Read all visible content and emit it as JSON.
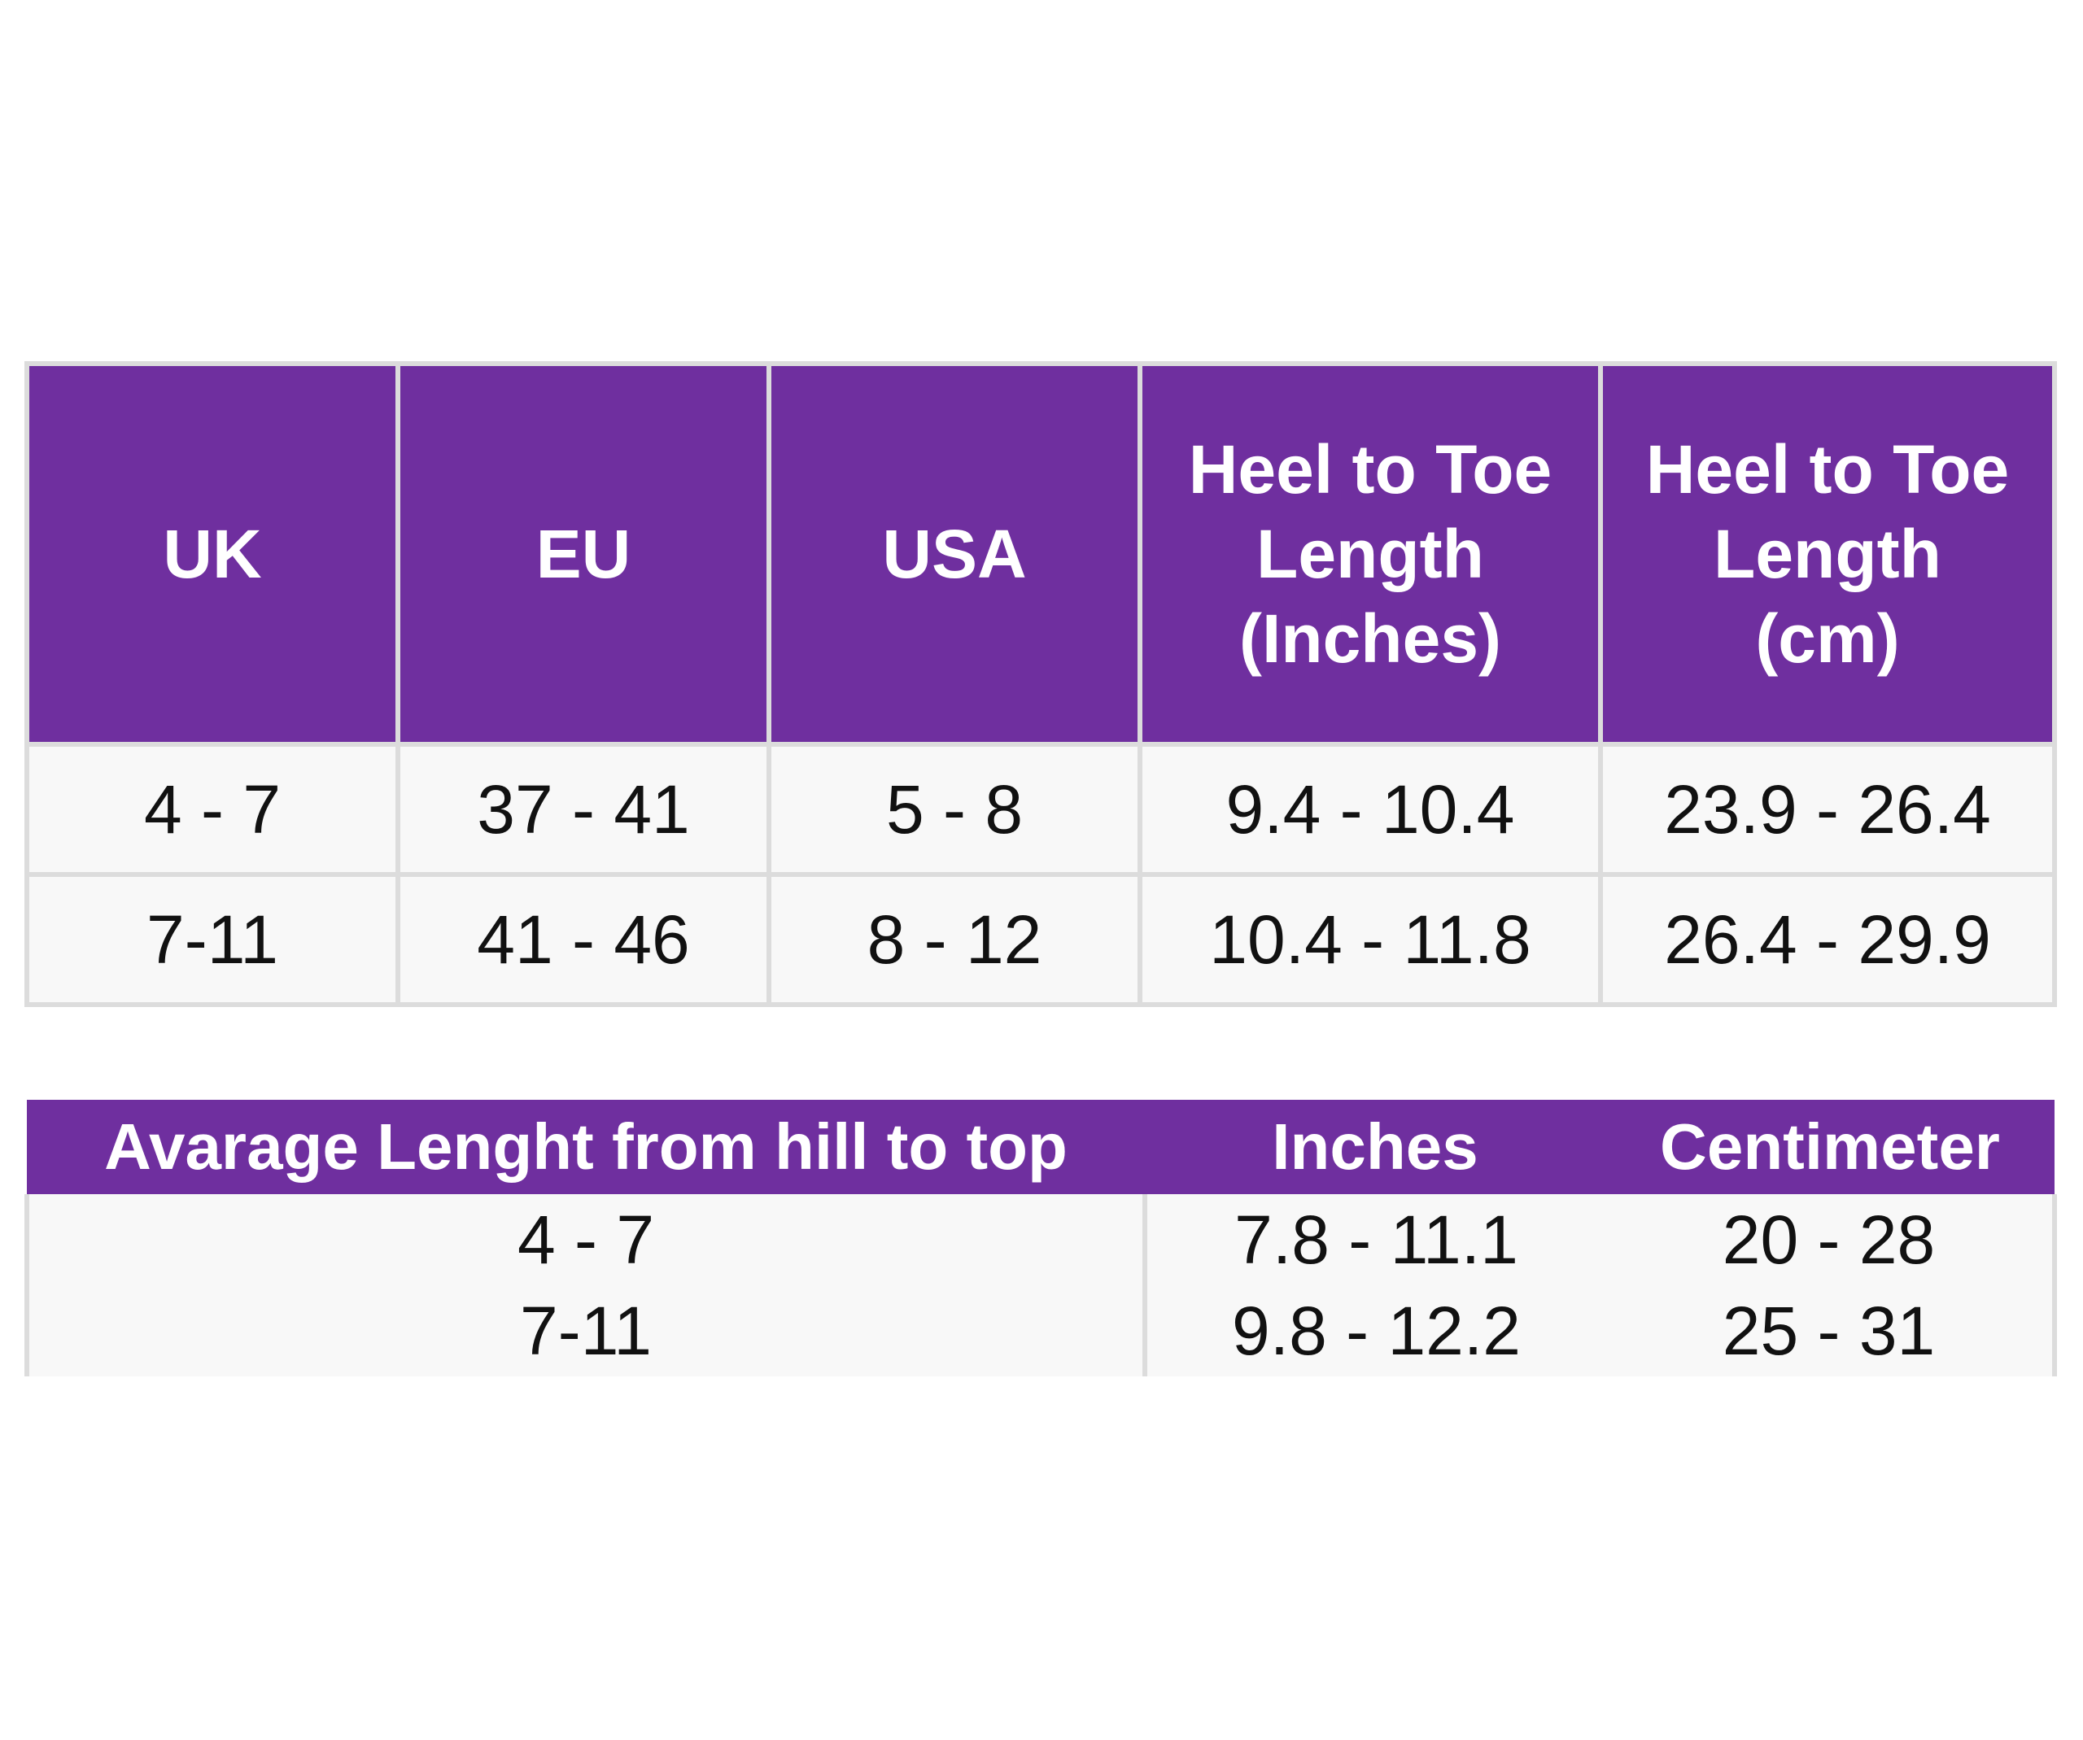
{
  "size_table": {
    "headers": {
      "uk": "UK",
      "eu": "EU",
      "usa": "USA",
      "inches_line1": "Heel to Toe",
      "inches_line2": "Length",
      "inches_line3": "(Inches)",
      "cm_line1": "Heel to Toe",
      "cm_line2": "Length",
      "cm_line3": "(cm)"
    },
    "rows": [
      {
        "uk": "4 - 7",
        "eu": "37 - 41",
        "usa": "5 - 8",
        "inches": "9.4 - 10.4",
        "cm": "23.9 - 26.4"
      },
      {
        "uk": "7-11",
        "eu": "41 - 46",
        "usa": "8 - 12",
        "inches": "10.4 - 11.8",
        "cm": "26.4 - 29.9"
      }
    ]
  },
  "length_table": {
    "headers": {
      "label": "Avarage Lenght from hill to top",
      "inches": "Inches",
      "cm": "Centimeter"
    },
    "rows": [
      {
        "size": "4 - 7",
        "inches": "7.8 - 11.1",
        "cm": "20 - 28"
      },
      {
        "size": "7-11",
        "inches": "9.8 - 12.2",
        "cm": "25 - 31"
      }
    ]
  },
  "colors": {
    "header_bg": "#6f2f9f",
    "header_text": "#ffffff",
    "cell_bg": "#f8f8f8",
    "border": "#dcdcdc"
  }
}
